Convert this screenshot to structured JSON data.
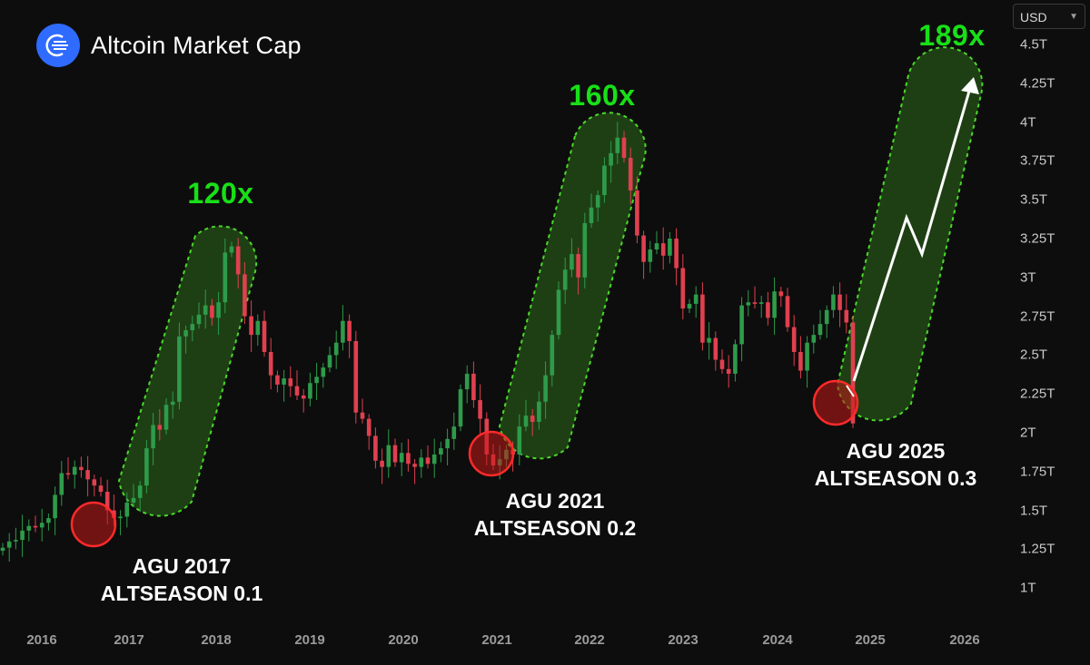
{
  "header": {
    "title": "Altcoin Market Cap",
    "logo_icon": "altcoin-logo-icon"
  },
  "currency_selector": {
    "value": "USD"
  },
  "colors": {
    "up": "#2e9b4a",
    "down": "#e0404f",
    "highlight": "#18e018",
    "zone_fill": "#1e3f14",
    "circle": "#c41919"
  },
  "chart_data": {
    "type": "candlestick",
    "title": "Altcoin Market Cap",
    "y_axis": {
      "ticks": [
        "4.5T",
        "4.25T",
        "4T",
        "3.75T",
        "3.5T",
        "3.25T",
        "3T",
        "2.75T",
        "2.5T",
        "2.25T",
        "2T",
        "1.75T",
        "1.5T",
        "1.25T",
        "1T"
      ]
    },
    "x_axis": {
      "ticks": [
        "2016",
        "2017",
        "2018",
        "2019",
        "2020",
        "2021",
        "2022",
        "2023",
        "2024",
        "2025",
        "2026"
      ]
    },
    "grid": false,
    "series": [
      {
        "name": "Altcoin Market Cap",
        "close": [
          1.26,
          1.3,
          1.31,
          1.37,
          1.4,
          1.39,
          1.42,
          1.45,
          1.6,
          1.74,
          1.73,
          1.78,
          1.76,
          1.7,
          1.66,
          1.62,
          1.5,
          1.45,
          1.46,
          1.55,
          1.58,
          1.66,
          1.9,
          2.05,
          2.02,
          2.18,
          2.2,
          2.62,
          2.66,
          2.7,
          2.76,
          2.82,
          2.74,
          2.84,
          3.16,
          3.2,
          3.02,
          2.75,
          2.63,
          2.72,
          2.52,
          2.37,
          2.31,
          2.35,
          2.3,
          2.24,
          2.22,
          2.32,
          2.36,
          2.42,
          2.5,
          2.58,
          2.72,
          2.59,
          2.13,
          2.09,
          1.98,
          1.82,
          1.78,
          1.92,
          1.81,
          1.87,
          1.8,
          1.78,
          1.84,
          1.8,
          1.86,
          1.9,
          1.96,
          2.04,
          2.28,
          2.38,
          2.21,
          2.09,
          1.86,
          1.79,
          1.83,
          1.89,
          1.86,
          2.04,
          2.11,
          2.07,
          2.2,
          2.37,
          2.63,
          2.92,
          3.05,
          3.15,
          3.0,
          3.35,
          3.45,
          3.53,
          3.72,
          3.8,
          3.9,
          3.77,
          3.56,
          3.27,
          3.1,
          3.18,
          3.22,
          3.14,
          3.25,
          3.06,
          2.8,
          2.83,
          2.89,
          2.58,
          2.61,
          2.47,
          2.41,
          2.38,
          2.57,
          2.82,
          2.84,
          2.83,
          2.84,
          2.74,
          2.91,
          2.88,
          2.68,
          2.52,
          2.4,
          2.58,
          2.63,
          2.7,
          2.79,
          2.89,
          2.79,
          2.71,
          2.06
        ],
        "annotations": [
          {
            "year": "2017",
            "multiplier": "120x"
          },
          {
            "year": "2021",
            "multiplier": "160x"
          },
          {
            "year": "2025",
            "multiplier": "189x"
          }
        ]
      }
    ]
  },
  "labels": {
    "mult_2017": "120x",
    "mult_2021": "160x",
    "mult_2025": "189x",
    "agu_2017_line1": "AGU 2017",
    "agu_2017_line2": "ALTSEASON 0.1",
    "agu_2021_line1": "AGU 2021",
    "agu_2021_line2": "ALTSEASON 0.2",
    "agu_2025_line1": "AGU 2025",
    "agu_2025_line2": "ALTSEASON 0.3"
  }
}
